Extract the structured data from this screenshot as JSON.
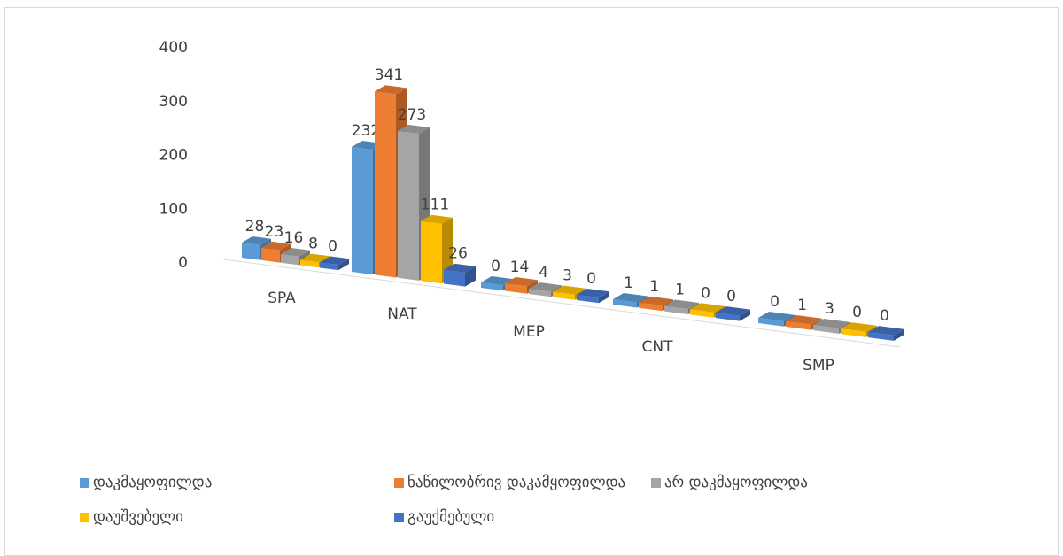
{
  "chart_data": {
    "type": "bar",
    "title": "",
    "xlabel": "",
    "ylabel": "",
    "ylim": [
      0,
      400
    ],
    "yticks": [
      0,
      100,
      200,
      300,
      400
    ],
    "grid": false,
    "legend_position": "bottom",
    "categories": [
      "SPA",
      "NAT",
      "MEP",
      "CNT",
      "SMP"
    ],
    "series": [
      {
        "name": "დაკმაყოფილდა",
        "color": "#5b9bd5",
        "values": [
          28,
          232,
          0,
          1,
          0
        ]
      },
      {
        "name": "ნაწილობრივ დაკამყოფილდა",
        "color": "#ed7d31",
        "values": [
          23,
          341,
          14,
          1,
          1
        ]
      },
      {
        "name": "არ დაკმაყოფილდა",
        "color": "#a5a5a5",
        "values": [
          16,
          273,
          4,
          1,
          3
        ]
      },
      {
        "name": "დაუშვებელი",
        "color": "#ffc000",
        "values": [
          8,
          111,
          3,
          0,
          0
        ]
      },
      {
        "name": "გაუქმებული",
        "color": "#4472c4",
        "values": [
          0,
          26,
          0,
          0,
          0
        ]
      }
    ]
  }
}
